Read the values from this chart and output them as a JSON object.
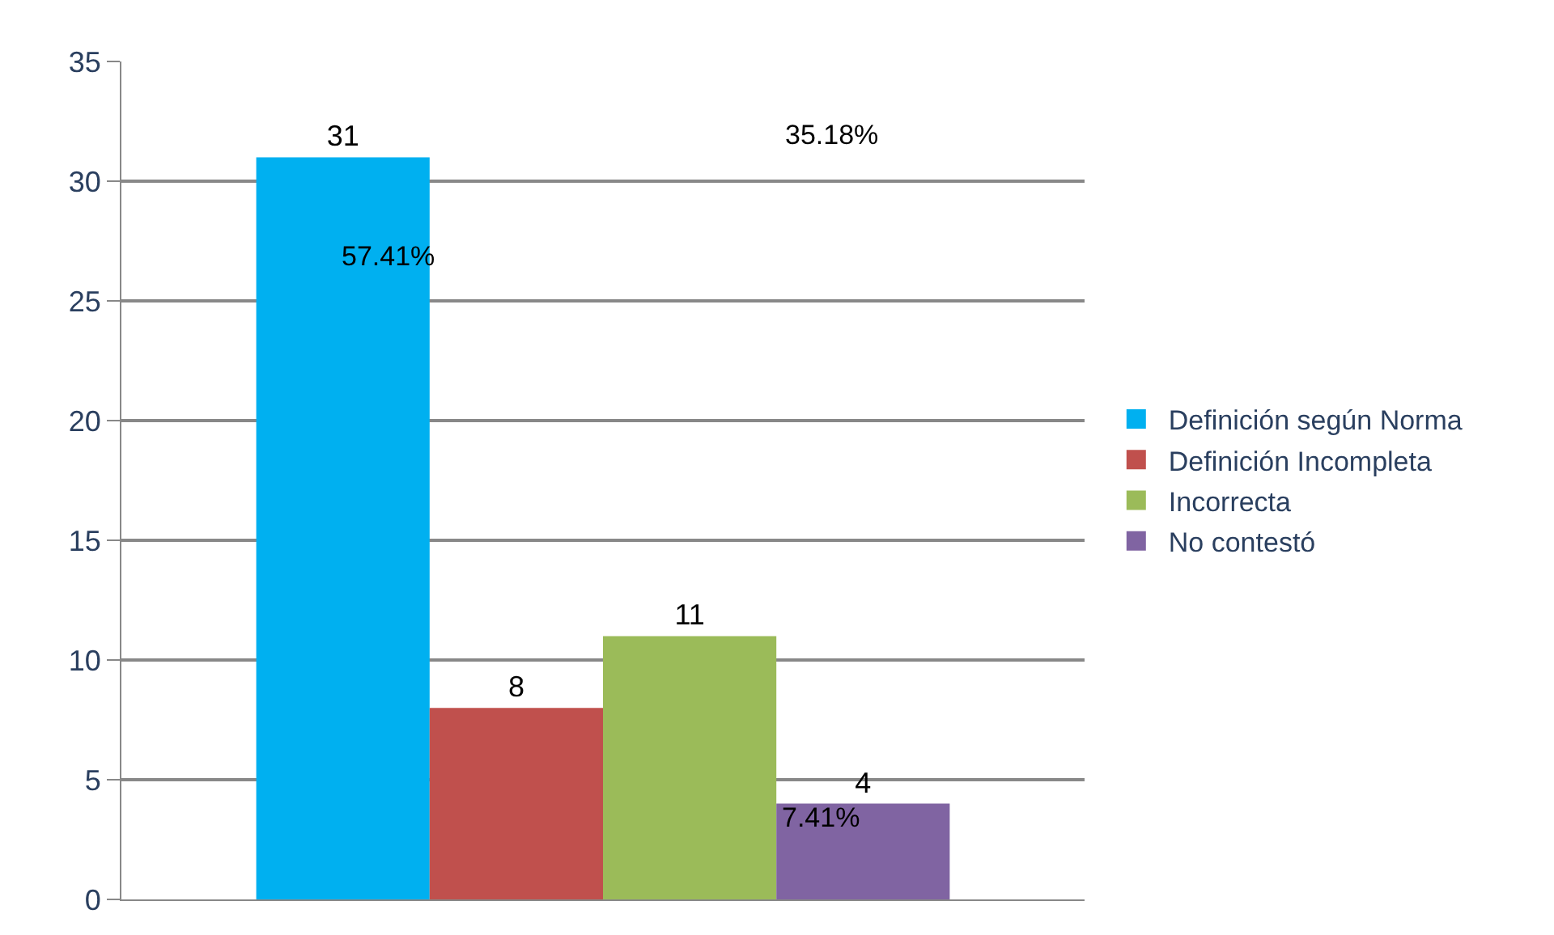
{
  "chart_data": {
    "type": "bar",
    "categories": [
      null
    ],
    "series": [
      {
        "name": "Definición según Norma",
        "color": "#00b0f0",
        "values": [
          31
        ]
      },
      {
        "name": "Definición Incompleta",
        "color": "#c0504d",
        "values": [
          8
        ]
      },
      {
        "name": "Incorrecta",
        "color": "#9bbb59",
        "values": [
          11
        ]
      },
      {
        "name": "No contestó",
        "color": "#8064a2",
        "values": [
          4
        ]
      }
    ],
    "ylim": [
      0,
      35
    ],
    "yticks": [
      0,
      5,
      10,
      15,
      20,
      25,
      30,
      35
    ],
    "grid": "y",
    "legend": "right",
    "data_labels": true,
    "annotations": [
      "57.41%",
      "35.18%",
      "7.41%"
    ]
  }
}
